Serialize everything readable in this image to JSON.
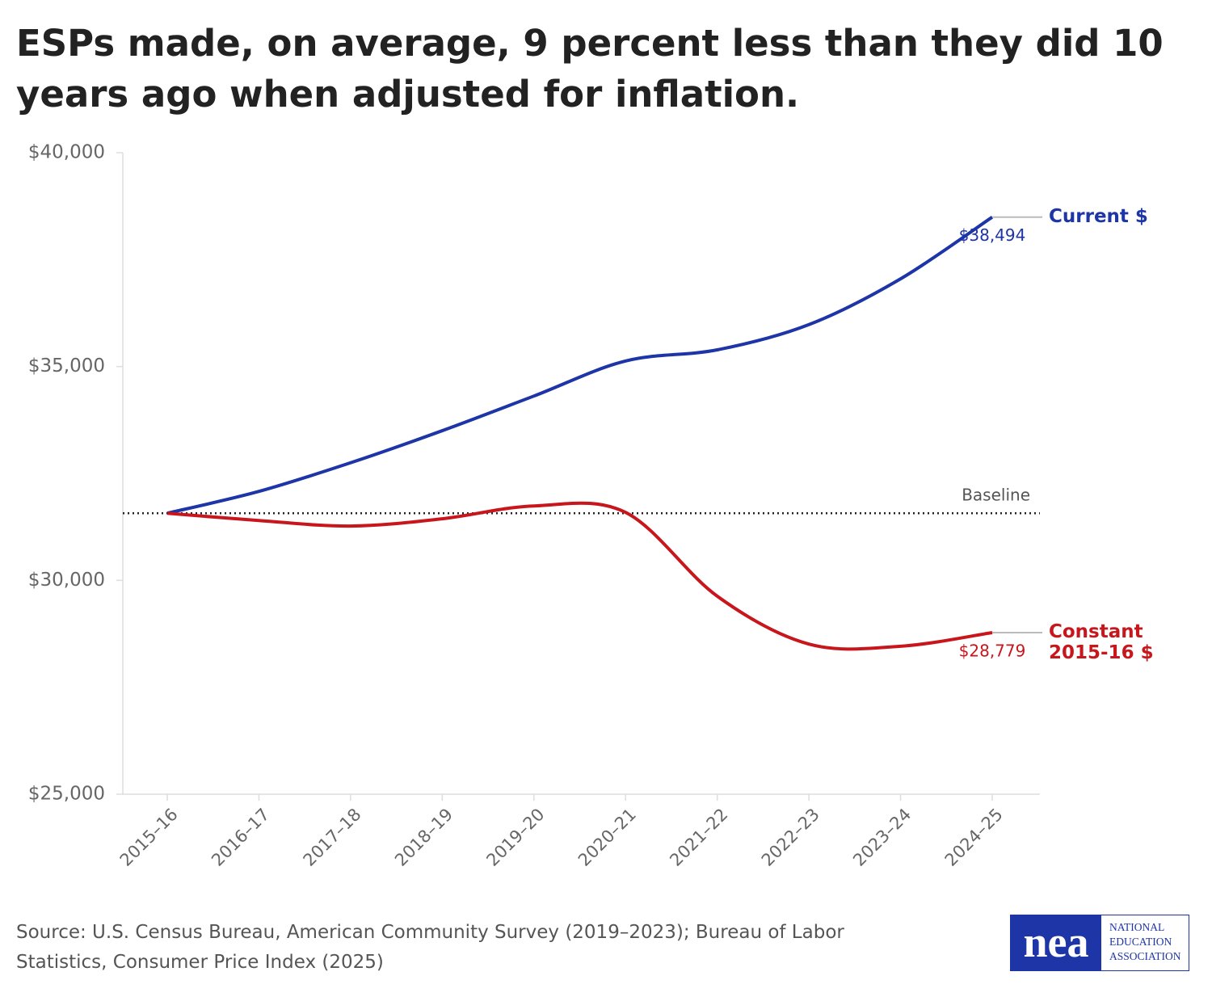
{
  "chart_data": {
    "type": "line",
    "title": "ESPs made, on average, 9 percent less than they did 10 years ago when adjusted for inflation.",
    "categories": [
      "2015–16",
      "2016–17",
      "2017–18",
      "2018–19",
      "2019–20",
      "2020–21",
      "2021–22",
      "2022–23",
      "2023–24",
      "2024–25"
    ],
    "series": [
      {
        "name": "Current $",
        "color": "#1d35a6",
        "values": [
          31570,
          32080,
          32750,
          33500,
          34310,
          35130,
          35390,
          35980,
          37050,
          38494
        ],
        "value_labels": [
          null,
          null,
          null,
          null,
          null,
          null,
          null,
          null,
          null,
          "$38,494"
        ]
      },
      {
        "name": "Constant 2015-16 $",
        "color": "#c8161d",
        "values": [
          31570,
          31400,
          31270,
          31440,
          31740,
          31590,
          29630,
          28510,
          28460,
          28779
        ],
        "value_labels": [
          null,
          null,
          null,
          null,
          null,
          null,
          null,
          null,
          null,
          "$28,779"
        ]
      }
    ],
    "baseline": {
      "value": 31570,
      "label": "Baseline"
    },
    "ylim": [
      25000,
      40000
    ],
    "yticks": [
      {
        "value": 25000,
        "label": "$25,000"
      },
      {
        "value": 30000,
        "label": "$30,000"
      },
      {
        "value": 35000,
        "label": "$35,000"
      },
      {
        "value": 40000,
        "label": "$40,000"
      }
    ],
    "source": "Source: U.S. Census Bureau, American Community Survey (2019–2023); Bureau of Labor Statistics, Consumer Price Index (2025)"
  },
  "logo": {
    "mark": "nea",
    "lines": [
      "NATIONAL",
      "EDUCATION",
      "ASSOCIATION"
    ]
  }
}
